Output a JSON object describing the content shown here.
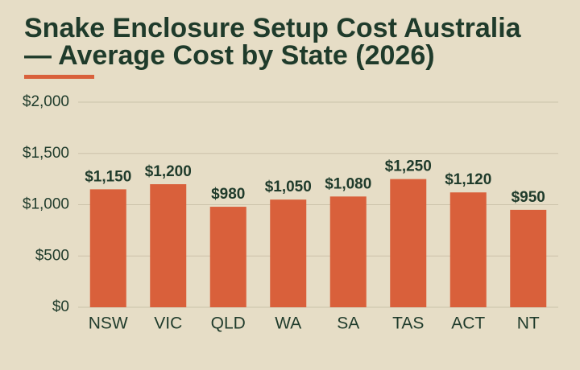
{
  "chart_data": {
    "type": "bar",
    "title": "Snake Enclosure Setup Cost Australia — Average Cost by State (2026)",
    "categories": [
      "NSW",
      "VIC",
      "QLD",
      "WA",
      "SA",
      "TAS",
      "ACT",
      "NT"
    ],
    "values": [
      1150,
      1200,
      980,
      1050,
      1080,
      1250,
      1120,
      950
    ],
    "value_labels": [
      "$1,150",
      "$1,200",
      "$980",
      "$1,050",
      "$1,080",
      "$1,250",
      "$1,120",
      "$950"
    ],
    "color": "#d9603b",
    "ylim": [
      0,
      2000
    ],
    "yticks": [
      {
        "value": 0,
        "label": "$0"
      },
      {
        "value": 500,
        "label": "$500"
      },
      {
        "value": 1000,
        "label": "$1,000"
      },
      {
        "value": 1500,
        "label": "$1,500"
      },
      {
        "value": 2000,
        "label": "$2,000"
      }
    ],
    "grid": true
  }
}
